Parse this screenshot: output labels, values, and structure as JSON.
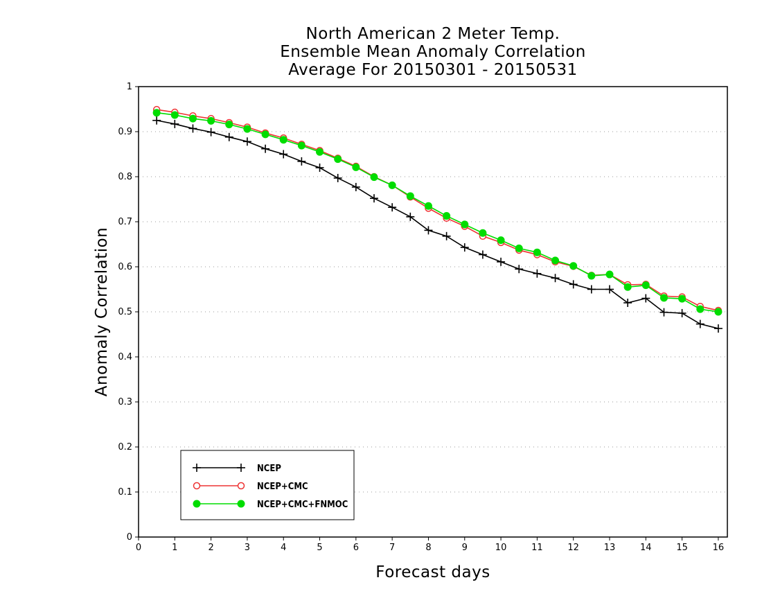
{
  "chart_data": {
    "type": "line",
    "title_lines": [
      "North American 2 Meter Temp.",
      "Ensemble Mean Anomaly Correlation",
      "Average For 20150301 - 20150531"
    ],
    "xlabel": "Forecast days",
    "ylabel": "Anomaly Correlation",
    "xlim": [
      0,
      16.25
    ],
    "ylim": [
      0,
      1
    ],
    "x_ticks": [
      0,
      1,
      2,
      3,
      4,
      5,
      6,
      7,
      8,
      9,
      10,
      11,
      12,
      13,
      14,
      15,
      16
    ],
    "y_ticks": [
      0,
      0.1,
      0.2,
      0.3,
      0.4,
      0.5,
      0.6,
      0.7,
      0.8,
      0.9,
      1
    ],
    "y_tick_labels": [
      "0",
      "0.1",
      "0.2",
      "0.3",
      "0.4",
      "0.5",
      "0.6",
      "0.7",
      "0.8",
      "0.9",
      "1"
    ],
    "x_tick_labels": [
      "0",
      "1",
      "2",
      "3",
      "4",
      "5",
      "6",
      "7",
      "8",
      "9",
      "10",
      "11",
      "12",
      "13",
      "14",
      "15",
      "16"
    ],
    "grid": "horizontal dotted",
    "legend_position": "bottom-left",
    "x": [
      0.5,
      1.0,
      1.5,
      2.0,
      2.5,
      3.0,
      3.5,
      4.0,
      4.5,
      5.0,
      5.5,
      6.0,
      6.5,
      7.0,
      7.5,
      8.0,
      8.5,
      9.0,
      9.5,
      10.0,
      10.5,
      11.0,
      11.5,
      12.0,
      12.5,
      13.0,
      13.5,
      14.0,
      14.5,
      15.0,
      15.5,
      16.0
    ],
    "series": [
      {
        "name": "NCEP",
        "color": "#000000",
        "marker": "plus",
        "values": [
          0.925,
          0.917,
          0.907,
          0.899,
          0.888,
          0.878,
          0.862,
          0.85,
          0.834,
          0.82,
          0.797,
          0.777,
          0.752,
          0.732,
          0.711,
          0.681,
          0.668,
          0.643,
          0.627,
          0.611,
          0.595,
          0.585,
          0.575,
          0.561,
          0.55,
          0.55,
          0.52,
          0.53,
          0.499,
          0.497,
          0.473,
          0.463
        ]
      },
      {
        "name": "NCEP+CMC",
        "color": "#ee3333",
        "marker": "open-circle",
        "values": [
          0.949,
          0.943,
          0.935,
          0.929,
          0.92,
          0.91,
          0.897,
          0.886,
          0.872,
          0.858,
          0.841,
          0.823,
          0.8,
          0.781,
          0.755,
          0.73,
          0.708,
          0.69,
          0.668,
          0.654,
          0.637,
          0.627,
          0.611,
          0.601,
          0.581,
          0.583,
          0.56,
          0.561,
          0.535,
          0.533,
          0.512,
          0.503
        ]
      },
      {
        "name": "NCEP+CMC+FNMOC",
        "color": "#00dd00",
        "marker": "filled-circle",
        "values": [
          0.942,
          0.937,
          0.929,
          0.924,
          0.916,
          0.906,
          0.894,
          0.882,
          0.869,
          0.855,
          0.839,
          0.821,
          0.799,
          0.781,
          0.757,
          0.735,
          0.713,
          0.694,
          0.675,
          0.659,
          0.641,
          0.632,
          0.614,
          0.602,
          0.58,
          0.583,
          0.555,
          0.559,
          0.531,
          0.529,
          0.506,
          0.5
        ]
      }
    ]
  }
}
